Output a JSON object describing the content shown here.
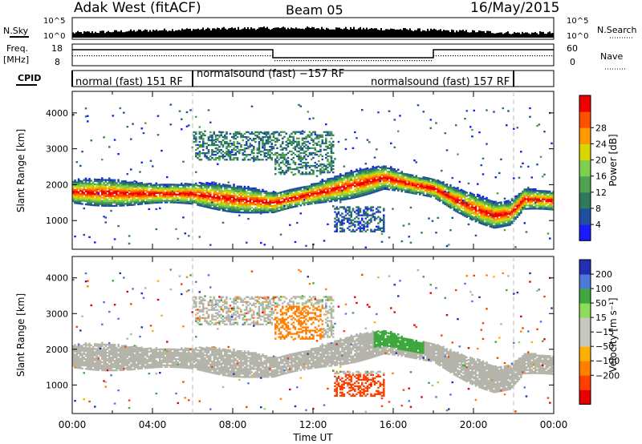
{
  "header": {
    "station": "Adak West (fitACF)",
    "beam": "Beam 05",
    "date": "16/May/2015"
  },
  "top_panels": {
    "nsky_label": "N.Sky",
    "nsearch_label": "N.Search",
    "freq_label": "Freq.",
    "freq_unit": "[MHz]",
    "nave_label": "Nave",
    "cpid_label": "CPID",
    "left_ticks_counts": [
      "10^5",
      "10^0"
    ],
    "right_ticks_counts": [
      "10^5",
      "10^0"
    ],
    "freq_ticks": [
      "18",
      "8"
    ],
    "nave_ticks": [
      "60",
      "0"
    ],
    "cpid_segments": [
      {
        "label": "normal (fast) 151 RF",
        "start_h": 0,
        "end_h": 6
      },
      {
        "label": "normalsound (fast) −157 RF",
        "start_h": 6,
        "end_h": 18
      },
      {
        "label": "normalsound (fast) 157 RF",
        "start_h": 18,
        "end_h": 22
      }
    ]
  },
  "colors": {
    "power_scale": [
      "#1a1aff",
      "#1f4fa0",
      "#2f7a5a",
      "#4fa24f",
      "#7fcf4f",
      "#d8d800",
      "#ff9900",
      "#ff5000",
      "#ee0000"
    ],
    "velocity_scale": [
      "#2030b0",
      "#4b7ad8",
      "#3ea83e",
      "#8fdc5a",
      "#c8c8c0",
      "#c8c8c0",
      "#ffb000",
      "#ff8000",
      "#ff4000",
      "#e80000"
    ],
    "ground_scatter": "#b4b4aa"
  },
  "chart_data": [
    {
      "type": "heatmap",
      "title": "",
      "xlabel": "Time UT",
      "ylabel": "Slant Range [km]",
      "xlim": [
        0,
        24
      ],
      "ylim": [
        200,
        4600
      ],
      "x_ticks": [
        "00:00",
        "04:00",
        "08:00",
        "12:00",
        "16:00",
        "20:00",
        "00:00"
      ],
      "y_ticks": [
        "1000",
        "2000",
        "3000",
        "4000"
      ],
      "colorbar": {
        "label": "Power [dB]",
        "ticks": [
          "4",
          "8",
          "12",
          "16",
          "20",
          "24",
          "28"
        ],
        "range": [
          0,
          32
        ]
      },
      "scatter_bands": [
        {
          "name": "main_echo",
          "start_h": 0,
          "end_h": 24,
          "center_km_by_hour": [
            [
              0,
              1800
            ],
            [
              3,
              1750
            ],
            [
              6,
              1750
            ],
            [
              8,
              1600
            ],
            [
              10,
              1500
            ],
            [
              12,
              1750
            ],
            [
              14,
              2000
            ],
            [
              15.5,
              2200
            ],
            [
              17,
              2000
            ],
            [
              18,
              1900
            ],
            [
              19,
              1600
            ],
            [
              20,
              1350
            ],
            [
              21,
              1150
            ],
            [
              21.8,
              1200
            ],
            [
              22.5,
              1600
            ],
            [
              24,
              1550
            ]
          ],
          "peak_power_db": 30
        },
        {
          "name": "upper_echo_morning",
          "start_h": 6,
          "end_h": 10,
          "range_km": [
            2700,
            3500
          ],
          "peak_power_db": 14
        },
        {
          "name": "upper_echo_noon",
          "start_h": 10,
          "end_h": 13,
          "range_km": [
            2300,
            3500
          ],
          "peak_power_db": 14
        },
        {
          "name": "low_arc",
          "start_h": 13,
          "end_h": 15.5,
          "range_km": [
            700,
            1400
          ],
          "peak_power_db": 10
        }
      ]
    },
    {
      "type": "heatmap",
      "title": "",
      "xlabel": "Time UT",
      "ylabel": "Slant Range [km]",
      "xlim": [
        0,
        24
      ],
      "ylim": [
        200,
        4600
      ],
      "x_ticks": [
        "00:00",
        "04:00",
        "08:00",
        "12:00",
        "16:00",
        "20:00",
        "00:00"
      ],
      "y_ticks": [
        "1000",
        "2000",
        "3000",
        "4000"
      ],
      "colorbar": {
        "label": "Velocity [m s⁻¹]",
        "ticks": [
          "200",
          "100",
          "50",
          "15",
          "−15",
          "−50",
          "−100",
          "−200"
        ],
        "range": [
          -250,
          250
        ]
      },
      "scatter_bands": [
        {
          "name": "main_echo_ground",
          "start_h": 0,
          "end_h": 24,
          "velocity_mps": 0
        },
        {
          "name": "noon_echo_away",
          "start_h": 10,
          "end_h": 12.5,
          "range_km": [
            1300,
            3200
          ],
          "velocity_mps": -60
        },
        {
          "name": "low_arc_away",
          "start_h": 13,
          "end_h": 15.5,
          "range_km": [
            700,
            1300
          ],
          "velocity_mps": -80
        },
        {
          "name": "afternoon_toward",
          "start_h": 15,
          "end_h": 17.5,
          "range_km": [
            1600,
            2100
          ],
          "velocity_mps": 40
        }
      ]
    }
  ]
}
